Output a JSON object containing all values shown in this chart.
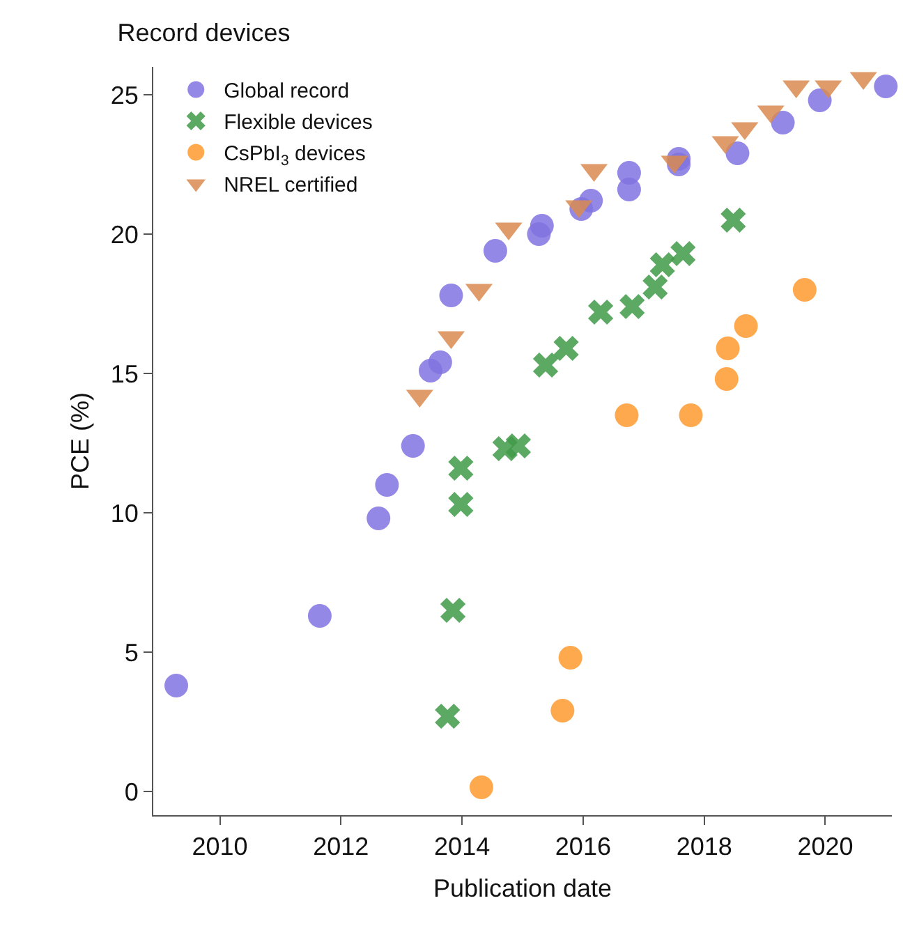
{
  "chart_data": {
    "type": "scatter",
    "title": "Record devices",
    "xlabel": "Publication date",
    "ylabel": "PCE (%)",
    "xlim": [
      2008.9,
      2021.1
    ],
    "ylim": [
      -0.85,
      26
    ],
    "xticks": [
      2010,
      2012,
      2014,
      2016,
      2018,
      2020
    ],
    "yticks": [
      0,
      5,
      10,
      15,
      20,
      25
    ],
    "legend": "top left",
    "series": [
      {
        "name": "Global record",
        "color": "#8073e0",
        "marker": "circle",
        "x": [
          2009.28,
          2011.65,
          2012.62,
          2012.76,
          2013.19,
          2013.48,
          2013.64,
          2013.82,
          2014.55,
          2015.27,
          2015.32,
          2015.97,
          2016.13,
          2016.76,
          2016.76,
          2017.58,
          2017.58,
          2018.55,
          2019.3,
          2019.91,
          2021.0
        ],
        "values": [
          3.8,
          6.3,
          9.8,
          11.0,
          12.4,
          15.1,
          15.4,
          17.8,
          19.4,
          20.0,
          20.3,
          20.9,
          21.2,
          21.6,
          22.2,
          22.5,
          22.7,
          22.9,
          24.0,
          24.8,
          25.3
        ]
      },
      {
        "name": "Flexible devices",
        "color": "#3f9a48",
        "marker": "cross",
        "x": [
          2013.76,
          2013.85,
          2013.98,
          2013.98,
          2014.71,
          2014.93,
          2015.38,
          2015.72,
          2016.29,
          2016.81,
          2017.19,
          2017.31,
          2017.65,
          2018.48
        ],
        "values": [
          2.7,
          6.5,
          10.3,
          11.6,
          12.3,
          12.4,
          15.3,
          15.9,
          17.2,
          17.4,
          18.1,
          18.9,
          19.3,
          20.5
        ]
      },
      {
        "name": "CsPbI$_{3}$ devices",
        "color": "#ff9a30",
        "marker": "circle",
        "x": [
          2014.32,
          2015.66,
          2015.79,
          2016.72,
          2017.78,
          2018.37,
          2018.39,
          2018.69,
          2019.66
        ],
        "values": [
          0.15,
          2.9,
          4.8,
          13.5,
          13.5,
          14.8,
          15.9,
          16.7,
          18.0
        ]
      },
      {
        "name": "NREL certified",
        "color": "#d98b50",
        "marker": "triangle",
        "x": [
          2013.3,
          2013.82,
          2014.28,
          2014.77,
          2015.93,
          2016.18,
          2017.51,
          2018.35,
          2018.67,
          2019.1,
          2019.52,
          2020.05,
          2020.63
        ],
        "values": [
          14.2,
          16.3,
          18.0,
          20.2,
          21.0,
          22.3,
          22.6,
          23.3,
          23.8,
          24.4,
          25.3,
          25.3,
          25.6
        ]
      }
    ]
  }
}
